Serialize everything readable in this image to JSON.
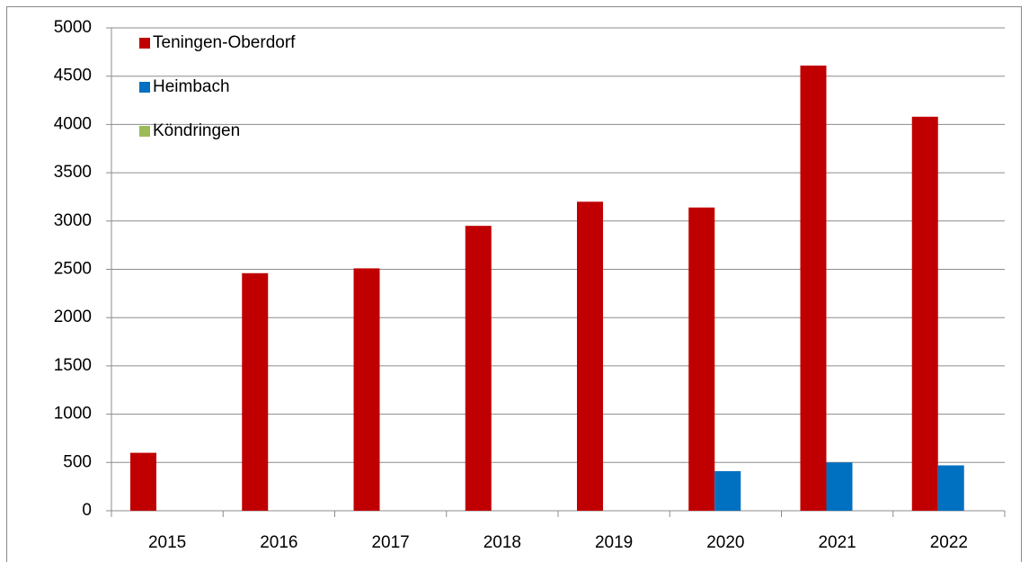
{
  "chart_data": {
    "type": "bar",
    "categories": [
      "2015",
      "2016",
      "2017",
      "2018",
      "2019",
      "2020",
      "2021",
      "2022"
    ],
    "series": [
      {
        "name": "Teningen-Oberdorf",
        "color": "#c00000",
        "values": [
          600,
          2460,
          2510,
          2950,
          3200,
          3140,
          4610,
          4080
        ]
      },
      {
        "name": "Heimbach",
        "color": "#0070c0",
        "values": [
          null,
          null,
          null,
          null,
          null,
          410,
          500,
          470
        ]
      },
      {
        "name": "Köndringen",
        "color": "#9bbb59",
        "values": [
          null,
          null,
          null,
          null,
          null,
          null,
          null,
          null
        ]
      }
    ],
    "ylim": [
      0,
      5000
    ],
    "yticks": [
      0,
      500,
      1000,
      1500,
      2000,
      2500,
      3000,
      3500,
      4000,
      4500,
      5000
    ],
    "grid": true,
    "legend": "top-left"
  }
}
